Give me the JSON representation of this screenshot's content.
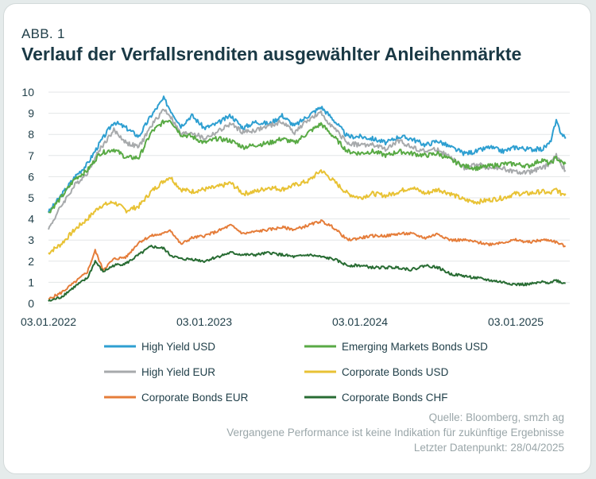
{
  "header": {
    "kicker": "ABB. 1",
    "title": "Verlauf der Verfallsrenditen ausgewählter Anleihenmärkte"
  },
  "footer": {
    "source": "Quelle: Bloomberg, smzh ag",
    "disclaimer": "Vergangene Performance ist keine Indikation für zukünftige Ergebnisse",
    "last_datapoint": "Letzter Datenpunkt: 28/04/2025"
  },
  "chart_data": {
    "type": "line",
    "title": "Verlauf der Verfallsrenditen ausgewählter Anleihenmärkte",
    "xlabel": "",
    "ylabel": "",
    "x_unit": "years since 03.01.2022",
    "x_tick_values": [
      0,
      1,
      2,
      3
    ],
    "x_tick_labels": [
      "03.01.2022",
      "03.01.2023",
      "03.01.2024",
      "03.01.2025"
    ],
    "xlim": [
      0,
      3.32
    ],
    "ylim": [
      0,
      10
    ],
    "y_ticks": [
      0,
      1,
      2,
      3,
      4,
      5,
      6,
      7,
      8,
      9,
      10
    ],
    "grid": "horizontal",
    "legend_position": "bottom",
    "series": [
      {
        "name": "High Yield USD",
        "color": "#2e9fd1",
        "points": [
          [
            0,
            4.3
          ],
          [
            0.08,
            5.1
          ],
          [
            0.17,
            6.0
          ],
          [
            0.25,
            6.6
          ],
          [
            0.33,
            7.6
          ],
          [
            0.42,
            8.6
          ],
          [
            0.5,
            8.3
          ],
          [
            0.58,
            7.9
          ],
          [
            0.66,
            8.9
          ],
          [
            0.74,
            9.7
          ],
          [
            0.78,
            9.2
          ],
          [
            0.85,
            8.4
          ],
          [
            0.92,
            8.9
          ],
          [
            1.0,
            8.3
          ],
          [
            1.08,
            8.5
          ],
          [
            1.17,
            8.9
          ],
          [
            1.25,
            8.3
          ],
          [
            1.33,
            8.6
          ],
          [
            1.42,
            8.5
          ],
          [
            1.5,
            8.9
          ],
          [
            1.58,
            8.4
          ],
          [
            1.67,
            8.9
          ],
          [
            1.75,
            9.3
          ],
          [
            1.83,
            8.7
          ],
          [
            1.92,
            7.9
          ],
          [
            2.0,
            7.9
          ],
          [
            2.08,
            7.8
          ],
          [
            2.17,
            7.6
          ],
          [
            2.25,
            7.9
          ],
          [
            2.33,
            7.8
          ],
          [
            2.42,
            7.5
          ],
          [
            2.5,
            7.7
          ],
          [
            2.58,
            7.4
          ],
          [
            2.67,
            7.1
          ],
          [
            2.75,
            7.2
          ],
          [
            2.83,
            7.4
          ],
          [
            2.92,
            7.2
          ],
          [
            3.0,
            7.4
          ],
          [
            3.08,
            7.3
          ],
          [
            3.17,
            7.3
          ],
          [
            3.22,
            7.6
          ],
          [
            3.26,
            8.6
          ],
          [
            3.29,
            8.1
          ],
          [
            3.32,
            7.8
          ]
        ]
      },
      {
        "name": "High Yield EUR",
        "color": "#a7aaac",
        "points": [
          [
            0,
            3.5
          ],
          [
            0.08,
            4.6
          ],
          [
            0.17,
            5.6
          ],
          [
            0.25,
            6.2
          ],
          [
            0.33,
            7.3
          ],
          [
            0.42,
            8.2
          ],
          [
            0.5,
            7.6
          ],
          [
            0.58,
            7.4
          ],
          [
            0.66,
            8.4
          ],
          [
            0.74,
            9.2
          ],
          [
            0.78,
            8.9
          ],
          [
            0.85,
            8.0
          ],
          [
            0.92,
            8.1
          ],
          [
            1.0,
            7.8
          ],
          [
            1.08,
            8.1
          ],
          [
            1.17,
            8.5
          ],
          [
            1.25,
            8.1
          ],
          [
            1.33,
            8.2
          ],
          [
            1.42,
            8.4
          ],
          [
            1.5,
            8.6
          ],
          [
            1.58,
            8.1
          ],
          [
            1.67,
            8.7
          ],
          [
            1.75,
            9.0
          ],
          [
            1.83,
            8.3
          ],
          [
            1.92,
            7.6
          ],
          [
            2.0,
            7.5
          ],
          [
            2.08,
            7.5
          ],
          [
            2.17,
            7.3
          ],
          [
            2.25,
            7.7
          ],
          [
            2.33,
            7.4
          ],
          [
            2.42,
            7.2
          ],
          [
            2.5,
            7.3
          ],
          [
            2.58,
            6.9
          ],
          [
            2.67,
            6.4
          ],
          [
            2.75,
            6.6
          ],
          [
            2.83,
            6.4
          ],
          [
            2.92,
            6.4
          ],
          [
            3.0,
            6.2
          ],
          [
            3.08,
            6.2
          ],
          [
            3.17,
            6.4
          ],
          [
            3.22,
            6.6
          ],
          [
            3.26,
            7.0
          ],
          [
            3.29,
            6.6
          ],
          [
            3.32,
            6.3
          ]
        ]
      },
      {
        "name": "Corporate Bonds EUR",
        "color": "#e57d3a",
        "points": [
          [
            0,
            0.2
          ],
          [
            0.08,
            0.5
          ],
          [
            0.17,
            1.0
          ],
          [
            0.25,
            1.5
          ],
          [
            0.3,
            2.5
          ],
          [
            0.35,
            1.6
          ],
          [
            0.42,
            2.1
          ],
          [
            0.5,
            2.2
          ],
          [
            0.58,
            2.9
          ],
          [
            0.66,
            3.2
          ],
          [
            0.74,
            3.3
          ],
          [
            0.78,
            3.5
          ],
          [
            0.85,
            2.8
          ],
          [
            0.92,
            3.1
          ],
          [
            1.0,
            3.2
          ],
          [
            1.08,
            3.4
          ],
          [
            1.17,
            3.7
          ],
          [
            1.25,
            3.3
          ],
          [
            1.33,
            3.4
          ],
          [
            1.42,
            3.5
          ],
          [
            1.5,
            3.6
          ],
          [
            1.58,
            3.5
          ],
          [
            1.67,
            3.7
          ],
          [
            1.75,
            3.9
          ],
          [
            1.83,
            3.6
          ],
          [
            1.92,
            3.0
          ],
          [
            2.0,
            3.1
          ],
          [
            2.08,
            3.2
          ],
          [
            2.17,
            3.2
          ],
          [
            2.25,
            3.3
          ],
          [
            2.33,
            3.3
          ],
          [
            2.42,
            3.1
          ],
          [
            2.5,
            3.3
          ],
          [
            2.58,
            3.0
          ],
          [
            2.67,
            3.0
          ],
          [
            2.75,
            2.9
          ],
          [
            2.83,
            2.8
          ],
          [
            2.92,
            2.9
          ],
          [
            3.0,
            3.0
          ],
          [
            3.08,
            2.9
          ],
          [
            3.17,
            3.0
          ],
          [
            3.22,
            3.0
          ],
          [
            3.26,
            2.9
          ],
          [
            3.29,
            2.8
          ],
          [
            3.32,
            2.7
          ]
        ]
      },
      {
        "name": "Emerging Markets Bonds USD",
        "color": "#59aa45",
        "points": [
          [
            0,
            4.3
          ],
          [
            0.08,
            5.0
          ],
          [
            0.17,
            5.9
          ],
          [
            0.25,
            6.3
          ],
          [
            0.33,
            7.1
          ],
          [
            0.42,
            7.3
          ],
          [
            0.5,
            6.9
          ],
          [
            0.58,
            6.9
          ],
          [
            0.66,
            8.1
          ],
          [
            0.74,
            8.6
          ],
          [
            0.78,
            8.7
          ],
          [
            0.85,
            8.0
          ],
          [
            0.92,
            7.9
          ],
          [
            1.0,
            7.6
          ],
          [
            1.08,
            7.8
          ],
          [
            1.17,
            7.7
          ],
          [
            1.25,
            7.4
          ],
          [
            1.33,
            7.5
          ],
          [
            1.42,
            7.6
          ],
          [
            1.5,
            7.8
          ],
          [
            1.58,
            7.6
          ],
          [
            1.67,
            8.1
          ],
          [
            1.75,
            8.5
          ],
          [
            1.83,
            7.9
          ],
          [
            1.92,
            7.2
          ],
          [
            2.0,
            7.1
          ],
          [
            2.08,
            7.2
          ],
          [
            2.17,
            7.0
          ],
          [
            2.25,
            7.2
          ],
          [
            2.33,
            7.1
          ],
          [
            2.42,
            7.0
          ],
          [
            2.5,
            7.1
          ],
          [
            2.58,
            6.8
          ],
          [
            2.67,
            6.5
          ],
          [
            2.75,
            6.4
          ],
          [
            2.83,
            6.5
          ],
          [
            2.92,
            6.6
          ],
          [
            3.0,
            6.6
          ],
          [
            3.08,
            6.5
          ],
          [
            3.17,
            6.8
          ],
          [
            3.22,
            6.6
          ],
          [
            3.26,
            6.9
          ],
          [
            3.29,
            6.7
          ],
          [
            3.32,
            6.6
          ]
        ]
      },
      {
        "name": "Corporate Bonds USD",
        "color": "#e8c234",
        "points": [
          [
            0,
            2.4
          ],
          [
            0.08,
            2.8
          ],
          [
            0.17,
            3.5
          ],
          [
            0.25,
            4.0
          ],
          [
            0.33,
            4.6
          ],
          [
            0.42,
            4.8
          ],
          [
            0.5,
            4.4
          ],
          [
            0.58,
            4.6
          ],
          [
            0.66,
            5.3
          ],
          [
            0.74,
            5.8
          ],
          [
            0.78,
            6.0
          ],
          [
            0.85,
            5.4
          ],
          [
            0.92,
            5.3
          ],
          [
            1.0,
            5.4
          ],
          [
            1.08,
            5.5
          ],
          [
            1.17,
            5.7
          ],
          [
            1.25,
            5.2
          ],
          [
            1.33,
            5.3
          ],
          [
            1.42,
            5.5
          ],
          [
            1.5,
            5.4
          ],
          [
            1.58,
            5.6
          ],
          [
            1.67,
            5.8
          ],
          [
            1.75,
            6.3
          ],
          [
            1.83,
            5.8
          ],
          [
            1.92,
            5.2
          ],
          [
            2.0,
            5.0
          ],
          [
            2.08,
            5.2
          ],
          [
            2.17,
            5.1
          ],
          [
            2.25,
            5.3
          ],
          [
            2.33,
            5.5
          ],
          [
            2.42,
            5.2
          ],
          [
            2.5,
            5.4
          ],
          [
            2.58,
            5.2
          ],
          [
            2.67,
            4.9
          ],
          [
            2.75,
            4.8
          ],
          [
            2.83,
            4.9
          ],
          [
            2.92,
            5.0
          ],
          [
            3.0,
            5.2
          ],
          [
            3.08,
            5.2
          ],
          [
            3.17,
            5.3
          ],
          [
            3.22,
            5.2
          ],
          [
            3.26,
            5.4
          ],
          [
            3.29,
            5.2
          ],
          [
            3.32,
            5.2
          ]
        ]
      },
      {
        "name": "Corporate Bonds CHF",
        "color": "#286c33",
        "points": [
          [
            0,
            0.1
          ],
          [
            0.08,
            0.3
          ],
          [
            0.17,
            0.8
          ],
          [
            0.25,
            1.2
          ],
          [
            0.3,
            2.0
          ],
          [
            0.35,
            1.5
          ],
          [
            0.42,
            1.8
          ],
          [
            0.5,
            1.9
          ],
          [
            0.58,
            2.3
          ],
          [
            0.66,
            2.7
          ],
          [
            0.74,
            2.6
          ],
          [
            0.78,
            2.3
          ],
          [
            0.85,
            2.1
          ],
          [
            0.92,
            2.1
          ],
          [
            1.0,
            2.0
          ],
          [
            1.08,
            2.2
          ],
          [
            1.17,
            2.4
          ],
          [
            1.25,
            2.3
          ],
          [
            1.33,
            2.3
          ],
          [
            1.42,
            2.4
          ],
          [
            1.5,
            2.3
          ],
          [
            1.58,
            2.2
          ],
          [
            1.67,
            2.3
          ],
          [
            1.75,
            2.2
          ],
          [
            1.83,
            2.1
          ],
          [
            1.92,
            1.8
          ],
          [
            2.0,
            1.8
          ],
          [
            2.08,
            1.7
          ],
          [
            2.17,
            1.7
          ],
          [
            2.25,
            1.7
          ],
          [
            2.33,
            1.6
          ],
          [
            2.42,
            1.8
          ],
          [
            2.5,
            1.7
          ],
          [
            2.58,
            1.4
          ],
          [
            2.67,
            1.3
          ],
          [
            2.75,
            1.2
          ],
          [
            2.83,
            1.1
          ],
          [
            2.92,
            1.0
          ],
          [
            3.0,
            0.9
          ],
          [
            3.08,
            0.9
          ],
          [
            3.17,
            1.0
          ],
          [
            3.22,
            1.0
          ],
          [
            3.26,
            1.1
          ],
          [
            3.29,
            1.0
          ],
          [
            3.32,
            0.95
          ]
        ]
      }
    ],
    "legend_order": [
      0,
      3,
      1,
      4,
      2,
      5
    ]
  }
}
